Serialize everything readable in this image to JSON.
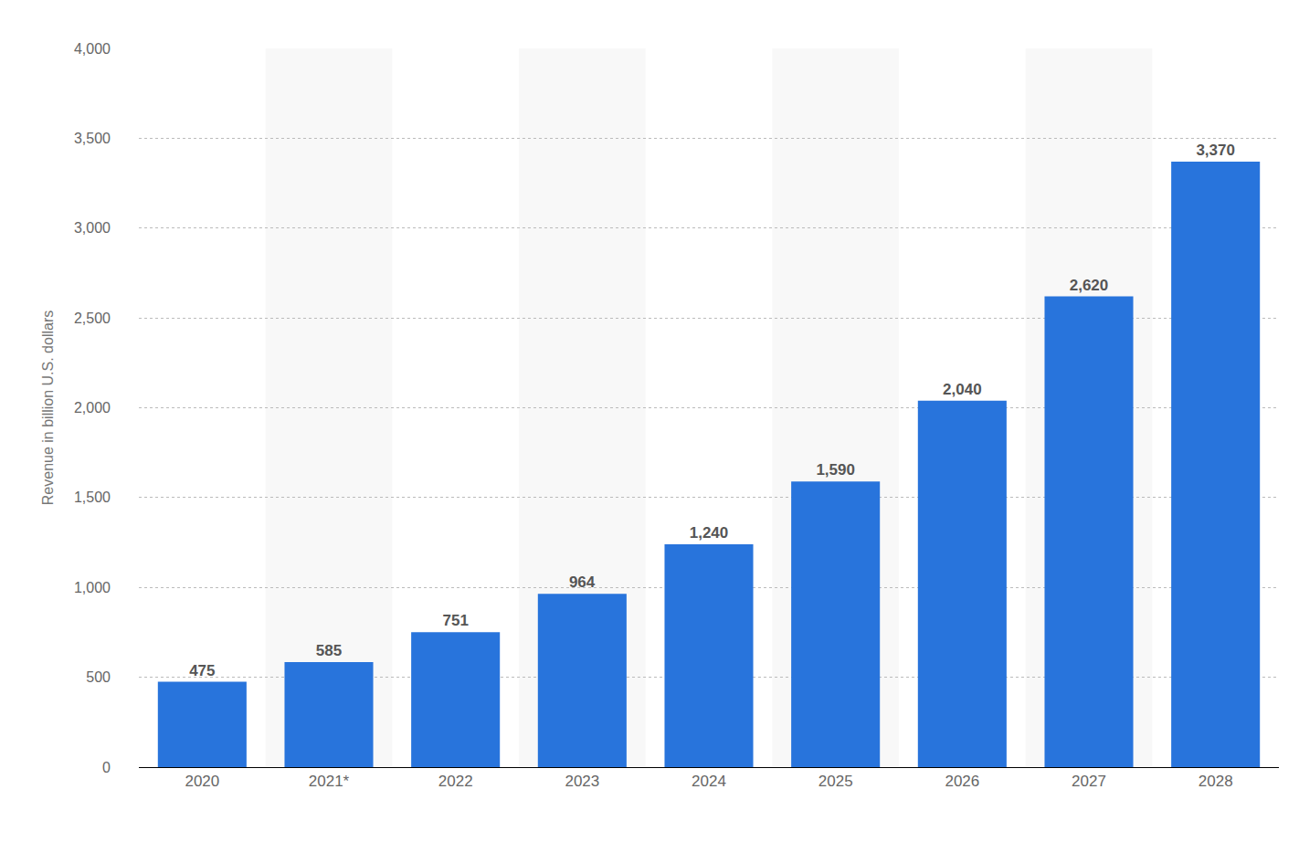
{
  "chart_data": {
    "type": "bar",
    "y_label": "Revenue in billion U.S. dollars",
    "categories": [
      "2020",
      "2021*",
      "2022",
      "2023",
      "2024",
      "2025",
      "2026",
      "2027",
      "2028"
    ],
    "values": [
      475,
      585,
      751,
      964,
      1240,
      1590,
      2040,
      2620,
      3370
    ],
    "value_labels": [
      "475",
      "585",
      "751",
      "964",
      "1,240",
      "1,590",
      "2,040",
      "2,620",
      "3,370"
    ],
    "color": "#2874dc",
    "ylim": [
      0,
      4000
    ],
    "yticks": [
      0,
      500,
      {
        "value": 1000,
        "label": "1,000"
      },
      {
        "value": 1500,
        "label": "1,500"
      },
      {
        "value": 2000,
        "label": "2,000"
      },
      {
        "value": 2500,
        "label": "2,500"
      },
      {
        "value": 3000,
        "label": "3,000"
      },
      {
        "value": 3500,
        "label": "3,500"
      },
      {
        "value": 4000,
        "label": "4,000"
      }
    ],
    "grid": true,
    "data_labels": true
  }
}
